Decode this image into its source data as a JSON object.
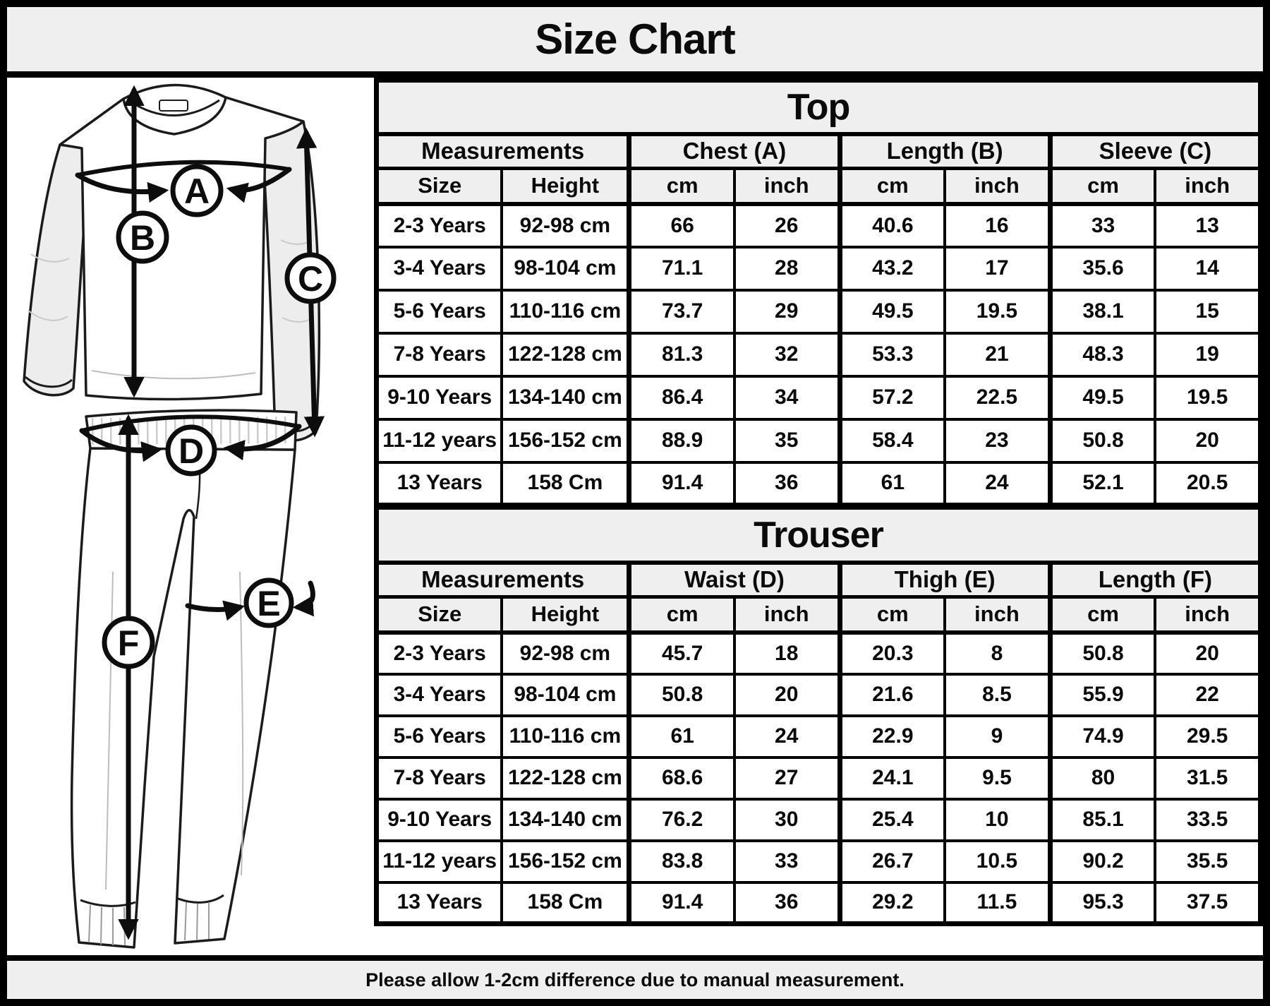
{
  "page_title": "Size Chart",
  "footer_note": "Please allow 1-2cm difference due to manual measurement.",
  "colors": {
    "band_bg": "#efefef",
    "border": "#000000",
    "text": "#0b0b0b",
    "panel_bg": "#ffffff"
  },
  "diagram": {
    "description": "line sketch of long-sleeve top and jogger trousers with circled measurement markers",
    "labels": [
      "A",
      "B",
      "C",
      "D",
      "E",
      "F"
    ]
  },
  "chart_data": [
    {
      "type": "table",
      "title": "Top",
      "group_headers": [
        "Measurements",
        "Chest (A)",
        "Length (B)",
        "Sleeve (C)"
      ],
      "columns": [
        "Size",
        "Height",
        "cm",
        "inch",
        "cm",
        "inch",
        "cm",
        "inch"
      ],
      "rows": [
        [
          "2-3 Years",
          "92-98 cm",
          "66",
          "26",
          "40.6",
          "16",
          "33",
          "13"
        ],
        [
          "3-4 Years",
          "98-104 cm",
          "71.1",
          "28",
          "43.2",
          "17",
          "35.6",
          "14"
        ],
        [
          "5-6 Years",
          "110-116 cm",
          "73.7",
          "29",
          "49.5",
          "19.5",
          "38.1",
          "15"
        ],
        [
          "7-8 Years",
          "122-128 cm",
          "81.3",
          "32",
          "53.3",
          "21",
          "48.3",
          "19"
        ],
        [
          "9-10 Years",
          "134-140 cm",
          "86.4",
          "34",
          "57.2",
          "22.5",
          "49.5",
          "19.5"
        ],
        [
          "11-12 years",
          "156-152 cm",
          "88.9",
          "35",
          "58.4",
          "23",
          "50.8",
          "20"
        ],
        [
          "13 Years",
          "158 Cm",
          "91.4",
          "36",
          "61",
          "24",
          "52.1",
          "20.5"
        ]
      ]
    },
    {
      "type": "table",
      "title": "Trouser",
      "group_headers": [
        "Measurements",
        "Waist (D)",
        "Thigh (E)",
        "Length (F)"
      ],
      "columns": [
        "Size",
        "Height",
        "cm",
        "inch",
        "cm",
        "inch",
        "cm",
        "inch"
      ],
      "rows": [
        [
          "2-3 Years",
          "92-98 cm",
          "45.7",
          "18",
          "20.3",
          "8",
          "50.8",
          "20"
        ],
        [
          "3-4 Years",
          "98-104 cm",
          "50.8",
          "20",
          "21.6",
          "8.5",
          "55.9",
          "22"
        ],
        [
          "5-6 Years",
          "110-116 cm",
          "61",
          "24",
          "22.9",
          "9",
          "74.9",
          "29.5"
        ],
        [
          "7-8 Years",
          "122-128 cm",
          "68.6",
          "27",
          "24.1",
          "9.5",
          "80",
          "31.5"
        ],
        [
          "9-10 Years",
          "134-140 cm",
          "76.2",
          "30",
          "25.4",
          "10",
          "85.1",
          "33.5"
        ],
        [
          "11-12 years",
          "156-152 cm",
          "83.8",
          "33",
          "26.7",
          "10.5",
          "90.2",
          "35.5"
        ],
        [
          "13 Years",
          "158 Cm",
          "91.4",
          "36",
          "29.2",
          "11.5",
          "95.3",
          "37.5"
        ]
      ]
    }
  ]
}
